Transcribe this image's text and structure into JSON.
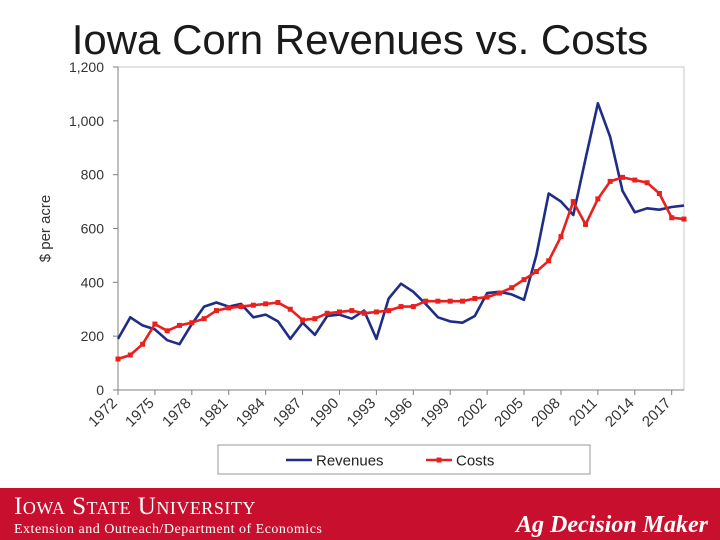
{
  "slide": {
    "title": "Iowa Corn Revenues vs. Costs"
  },
  "footer": {
    "university": "Iowa State University",
    "department": "Extension and Outreach/Department of Economics",
    "brand": "Ag Decision Maker",
    "band_color": "#c8102e"
  },
  "chart_data": {
    "type": "line",
    "title": "",
    "xlabel": "",
    "ylabel": "$ per acre",
    "ylim": [
      0,
      1200
    ],
    "yticks": [
      0,
      200,
      400,
      600,
      800,
      1000,
      1200
    ],
    "ytick_labels": [
      "0",
      "200",
      "400",
      "600",
      "800",
      "1,000",
      "1,200"
    ],
    "xlim": [
      1972,
      2018
    ],
    "xtick_labels": [
      "1972",
      "1975",
      "1978",
      "1981",
      "1984",
      "1987",
      "1990",
      "1993",
      "1996",
      "1999",
      "2002",
      "2005",
      "2008",
      "2011",
      "2014",
      "2017"
    ],
    "grid": false,
    "legend_position": "bottom",
    "x": [
      1972,
      1973,
      1974,
      1975,
      1976,
      1977,
      1978,
      1979,
      1980,
      1981,
      1982,
      1983,
      1984,
      1985,
      1986,
      1987,
      1988,
      1989,
      1990,
      1991,
      1992,
      1993,
      1994,
      1995,
      1996,
      1997,
      1998,
      1999,
      2000,
      2001,
      2002,
      2003,
      2004,
      2005,
      2006,
      2007,
      2008,
      2009,
      2010,
      2011,
      2012,
      2013,
      2014,
      2015,
      2016,
      2017,
      2018
    ],
    "series": [
      {
        "name": "Revenues",
        "color": "#1f2d86",
        "marker": "none",
        "values": [
          190,
          270,
          240,
          225,
          185,
          170,
          245,
          310,
          325,
          310,
          320,
          270,
          280,
          255,
          190,
          250,
          205,
          275,
          280,
          265,
          295,
          190,
          340,
          395,
          365,
          320,
          270,
          255,
          250,
          275,
          360,
          365,
          355,
          335,
          500,
          730,
          700,
          650,
          860,
          1065,
          940,
          740,
          660,
          675,
          670,
          680,
          685
        ]
      },
      {
        "name": "Costs",
        "color": "#e8201e",
        "marker": "square",
        "values": [
          115,
          130,
          170,
          245,
          220,
          240,
          250,
          265,
          295,
          305,
          310,
          315,
          320,
          325,
          300,
          260,
          265,
          285,
          290,
          295,
          285,
          290,
          295,
          310,
          310,
          330,
          330,
          330,
          330,
          340,
          345,
          360,
          380,
          410,
          440,
          480,
          570,
          700,
          615,
          710,
          775,
          790,
          780,
          770,
          730,
          640,
          635
        ]
      }
    ]
  }
}
